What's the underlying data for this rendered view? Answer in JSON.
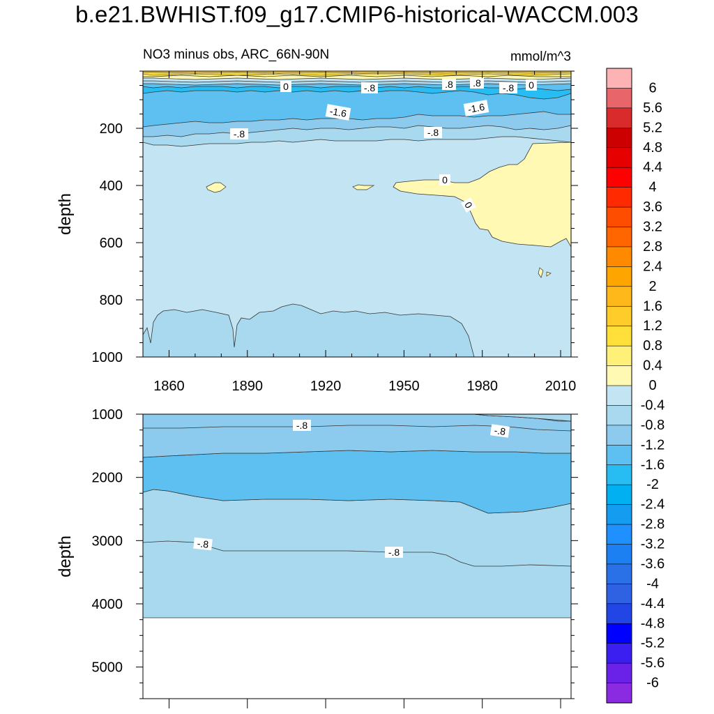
{
  "title": "b.e21.BWHIST.f09_g17.CMIP6-historical-WACCM.003",
  "chart_data": [
    {
      "type": "contour",
      "panel": "upper",
      "left_string": "NO3 minus obs, ARC_66N-90N",
      "right_string": "mmol/m^3",
      "ylabel": "depth",
      "x_ticks": [
        "1860",
        "1890",
        "1920",
        "1950",
        "1980",
        "2010"
      ],
      "x_range": [
        1850,
        2014
      ],
      "y_ticks": [
        "200",
        "400",
        "600",
        "800",
        "1000"
      ],
      "y_range": [
        0,
        1000
      ],
      "contour_labels": [
        "0",
        "-.8",
        ".8",
        ".8",
        "-.8",
        "0",
        "-1.6",
        "-1.6",
        "-.8",
        "-.8",
        "0",
        "0"
      ]
    },
    {
      "type": "contour",
      "panel": "lower",
      "ylabel": "depth",
      "y_ticks": [
        "1000",
        "2000",
        "3000",
        "4000",
        "5000"
      ],
      "y_range": [
        1000,
        5500
      ],
      "contour_labels": [
        "-.8",
        "-.8",
        "-.8",
        "-.8"
      ]
    }
  ],
  "colorbar": {
    "labels": [
      "6",
      "5.6",
      "5.2",
      "4.8",
      "4.4",
      "4",
      "3.6",
      "3.2",
      "2.8",
      "2.4",
      "2",
      "1.6",
      "1.2",
      "0.8",
      "0.4",
      "0",
      "-0.4",
      "-0.8",
      "-1.2",
      "-1.6",
      "-2",
      "-2.4",
      "-2.8",
      "-3.2",
      "-3.6",
      "-4",
      "-4.4",
      "-4.8",
      "-5.2",
      "-5.6",
      "-6"
    ],
    "colors": [
      "#FDB3B3",
      "#E8666A",
      "#D92A2C",
      "#CC0000",
      "#E60000",
      "#FF0000",
      "#FF2A00",
      "#FF4D00",
      "#FF6600",
      "#FF8A00",
      "#FFA500",
      "#FFB81A",
      "#FFCC2A",
      "#FFE03A",
      "#FFF07A",
      "#FFF9B4",
      "#C3E4F2",
      "#A9D9EF",
      "#8CCBEE",
      "#5EC0F0",
      "#28BDF2",
      "#00B0F0",
      "#149CF0",
      "#1E90FF",
      "#1C7FF2",
      "#2A70E6",
      "#2E62E3",
      "#2245E6",
      "#0000FF",
      "#3A1FF0",
      "#6A22E8",
      "#8A2BE2"
    ]
  }
}
